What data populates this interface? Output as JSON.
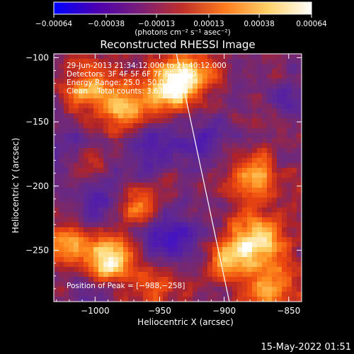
{
  "chart_data": {
    "type": "heatmap",
    "title": "Reconstructed RHESSI Image",
    "xlabel": "Heliocentric X (arcsec)",
    "ylabel": "Heliocentric Y (arcsec)",
    "xlim": [
      -1032,
      -840
    ],
    "ylim": [
      -290,
      -97
    ],
    "x_ticks": [
      -1000,
      -950,
      -900,
      -850
    ],
    "x_tick_labels": [
      "−1000",
      "−950",
      "−900",
      "−850"
    ],
    "y_ticks": [
      -100,
      -150,
      -200,
      -250
    ],
    "y_tick_labels": [
      "−100",
      "−150",
      "−200",
      "−250"
    ],
    "colorbar": {
      "ticks": [
        -0.00064,
        -0.00038,
        -0.00013,
        0.00013,
        0.00038,
        0.00064
      ],
      "tick_labels": [
        "−0.00064",
        "−0.00038",
        "−0.00013",
        "0.00013",
        "0.00038",
        "0.00064"
      ],
      "unit_label": "(photons cm⁻² s⁻¹ asec⁻²)",
      "colors": [
        "#0000ff",
        "#4b00b0",
        "#7a1e7a",
        "#c0302a",
        "#ff7d1e",
        "#ffd26a",
        "#ffffff"
      ]
    },
    "annotations": {
      "time_range": "29‑Jun‑2013 21:34:12.000 to 21:40:12.000",
      "detectors": "Detectors: 3F 4F 5F 6F 7F 8F, Att 0",
      "energy": "Energy Range: 25.0 ‑ 50.0 keV",
      "clean": "Clean    Total counts: 3.63E+04",
      "peak": "Position of Peak = [−988,−258]"
    },
    "peak_position": [
      -988,
      -258
    ],
    "limb_line": [
      [
        -937,
        -97
      ],
      [
        -896,
        -290
      ]
    ],
    "bright_regions": [
      {
        "x": -942,
        "y": -125,
        "intensity": 1.0
      },
      {
        "x": -978,
        "y": -140,
        "intensity": 0.75
      },
      {
        "x": -1005,
        "y": -125,
        "intensity": 0.6
      },
      {
        "x": -925,
        "y": -110,
        "intensity": 0.6
      },
      {
        "x": -878,
        "y": -195,
        "intensity": 0.7
      },
      {
        "x": -872,
        "y": -240,
        "intensity": 0.8
      },
      {
        "x": -895,
        "y": -255,
        "intensity": 0.75
      },
      {
        "x": -862,
        "y": -278,
        "intensity": 0.65
      },
      {
        "x": -988,
        "y": -258,
        "intensity": 1.0
      },
      {
        "x": -1020,
        "y": -245,
        "intensity": 0.6
      },
      {
        "x": -965,
        "y": -215,
        "intensity": 0.7
      },
      {
        "x": -1005,
        "y": -185,
        "intensity": 0.45
      },
      {
        "x": -955,
        "y": -275,
        "intensity": 0.4
      }
    ],
    "dark_regions": [
      {
        "x": -995,
        "y": -205,
        "intensity": 0.9
      },
      {
        "x": -955,
        "y": -170,
        "intensity": 0.8
      },
      {
        "x": -915,
        "y": -160,
        "intensity": 0.7
      },
      {
        "x": -1020,
        "y": -170,
        "intensity": 0.6
      },
      {
        "x": -935,
        "y": -235,
        "intensity": 0.7
      },
      {
        "x": -955,
        "y": -245,
        "intensity": 0.6
      },
      {
        "x": -850,
        "y": -130,
        "intensity": 0.5
      },
      {
        "x": -1005,
        "y": -285,
        "intensity": 0.5
      }
    ]
  },
  "footer": {
    "timestamp": "15‑May‑2022 01:51"
  }
}
